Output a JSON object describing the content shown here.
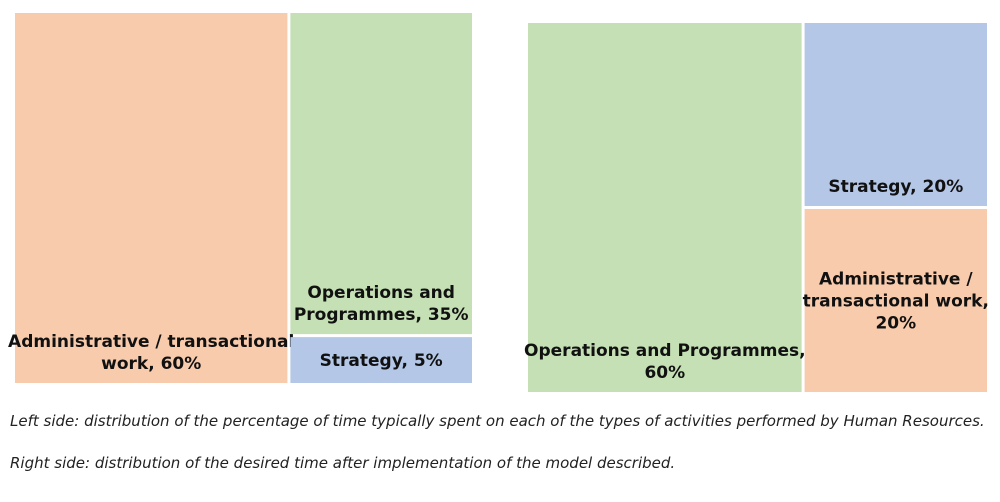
{
  "chart_data": [
    {
      "type": "treemap",
      "items": [
        {
          "name": "Administrative / transactional work",
          "value": 60,
          "label": [
            "Administrative / transactional",
            "work, 60%"
          ],
          "color": "#f8cbad"
        },
        {
          "name": "Operations and Programmes",
          "value": 35,
          "label": [
            "Operations and",
            "Programmes, 35%"
          ],
          "color": "#c5e0b4"
        },
        {
          "name": "Strategy",
          "value": 5,
          "label": [
            "Strategy, 5%"
          ],
          "color": "#b4c7e7"
        }
      ]
    },
    {
      "type": "treemap",
      "items": [
        {
          "name": "Operations and Programmes",
          "value": 60,
          "label": [
            "Operations and Programmes,",
            "60%"
          ],
          "color": "#c5e0b4"
        },
        {
          "name": "Strategy",
          "value": 20,
          "label": [
            "Strategy, 20%"
          ],
          "color": "#b4c7e7"
        },
        {
          "name": "Administrative / transactional work",
          "value": 20,
          "label": [
            "Administrative /",
            "transactional work,",
            "20%"
          ],
          "color": "#f8cbad"
        }
      ]
    }
  ],
  "caption": {
    "left": "Left side: distribution of the percentage of time typically spent on each of the types of activities performed by Human Resources.",
    "right": "Right side: distribution of the desired time after implementation of the model described."
  }
}
